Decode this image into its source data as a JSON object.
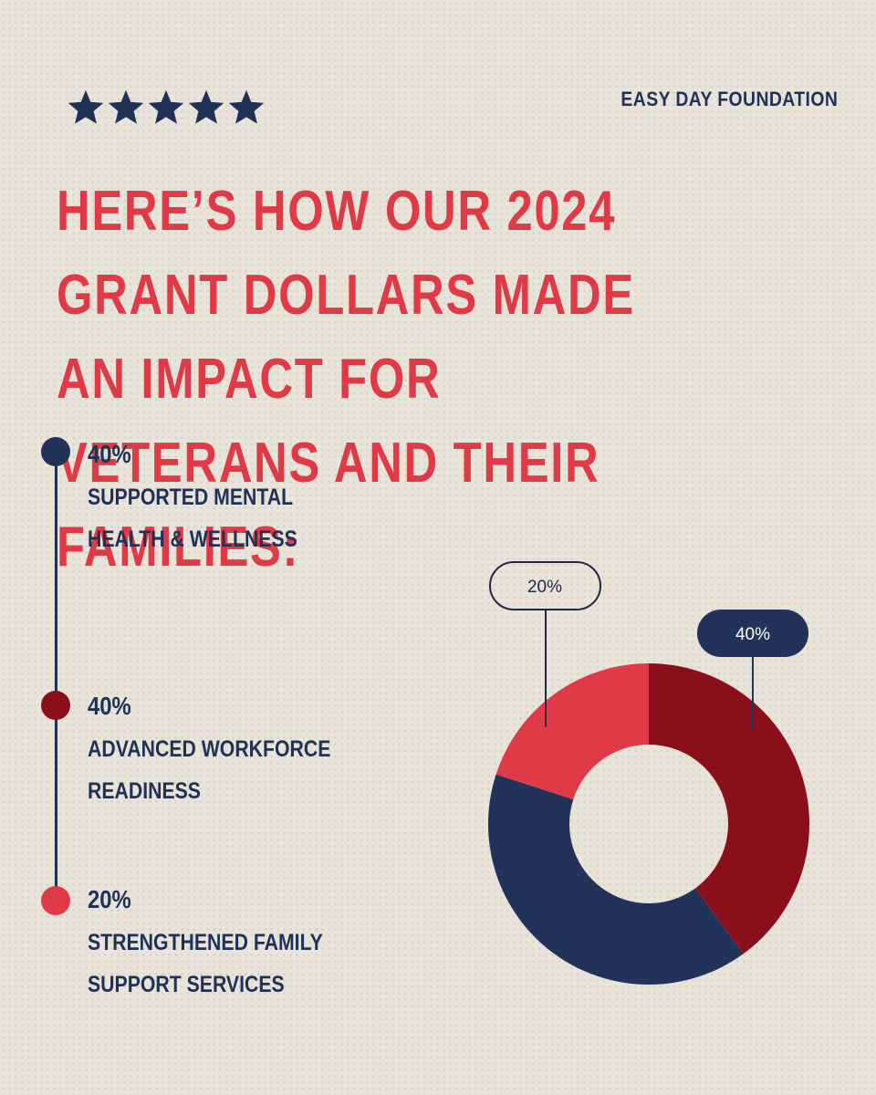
{
  "header": {
    "org_name": "EASY DAY FOUNDATION",
    "rating_icons": [
      "star-icon",
      "star-icon",
      "star-icon",
      "star-icon",
      "star-icon"
    ]
  },
  "headline": "HERE’S HOW OUR 2024 GRANT DOLLARS MADE AN IMPACT FOR VETERANS AND THEIR FAMILIES:",
  "colors": {
    "navy": "#22335a",
    "dark_red": "#8b0f1b",
    "red": "#e03a46",
    "background": "#e8e4d9"
  },
  "items": [
    {
      "pct": "40%",
      "desc": "SUPPORTED MENTAL HEALTH & WELLNESS",
      "color": "#22335a"
    },
    {
      "pct": "40%",
      "desc": "ADVANCED WORKFORCE READINESS",
      "color": "#8b0f1b"
    },
    {
      "pct": "20%",
      "desc": "STRENGTHENED FAMILY SUPPORT SERVICES",
      "color": "#e03a46"
    }
  ],
  "chart_data": {
    "type": "pie",
    "donut": true,
    "categories": [
      "SUPPORTED MENTAL HEALTH & WELLNESS",
      "ADVANCED WORKFORCE READINESS",
      "STRENGTHENED FAMILY SUPPORT SERVICES"
    ],
    "values": [
      40,
      40,
      20
    ],
    "unit": "%",
    "order_clockwise_from_top": [
      "ADVANCED WORKFORCE READINESS",
      "SUPPORTED MENTAL HEALTH & WELLNESS",
      "STRENGTHENED FAMILY SUPPORT SERVICES"
    ],
    "colors": {
      "ADVANCED WORKFORCE READINESS": "#8b0f1b",
      "SUPPORTED MENTAL HEALTH & WELLNESS": "#22335a",
      "STRENGTHENED FAMILY SUPPORT SERVICES": "#e03a46"
    },
    "callouts": [
      {
        "label": "40%",
        "style": "filled-navy",
        "slice": "ADVANCED WORKFORCE READINESS"
      },
      {
        "label": "20%",
        "style": "outlined",
        "slice": "STRENGTHENED FAMILY SUPPORT SERVICES"
      }
    ]
  }
}
